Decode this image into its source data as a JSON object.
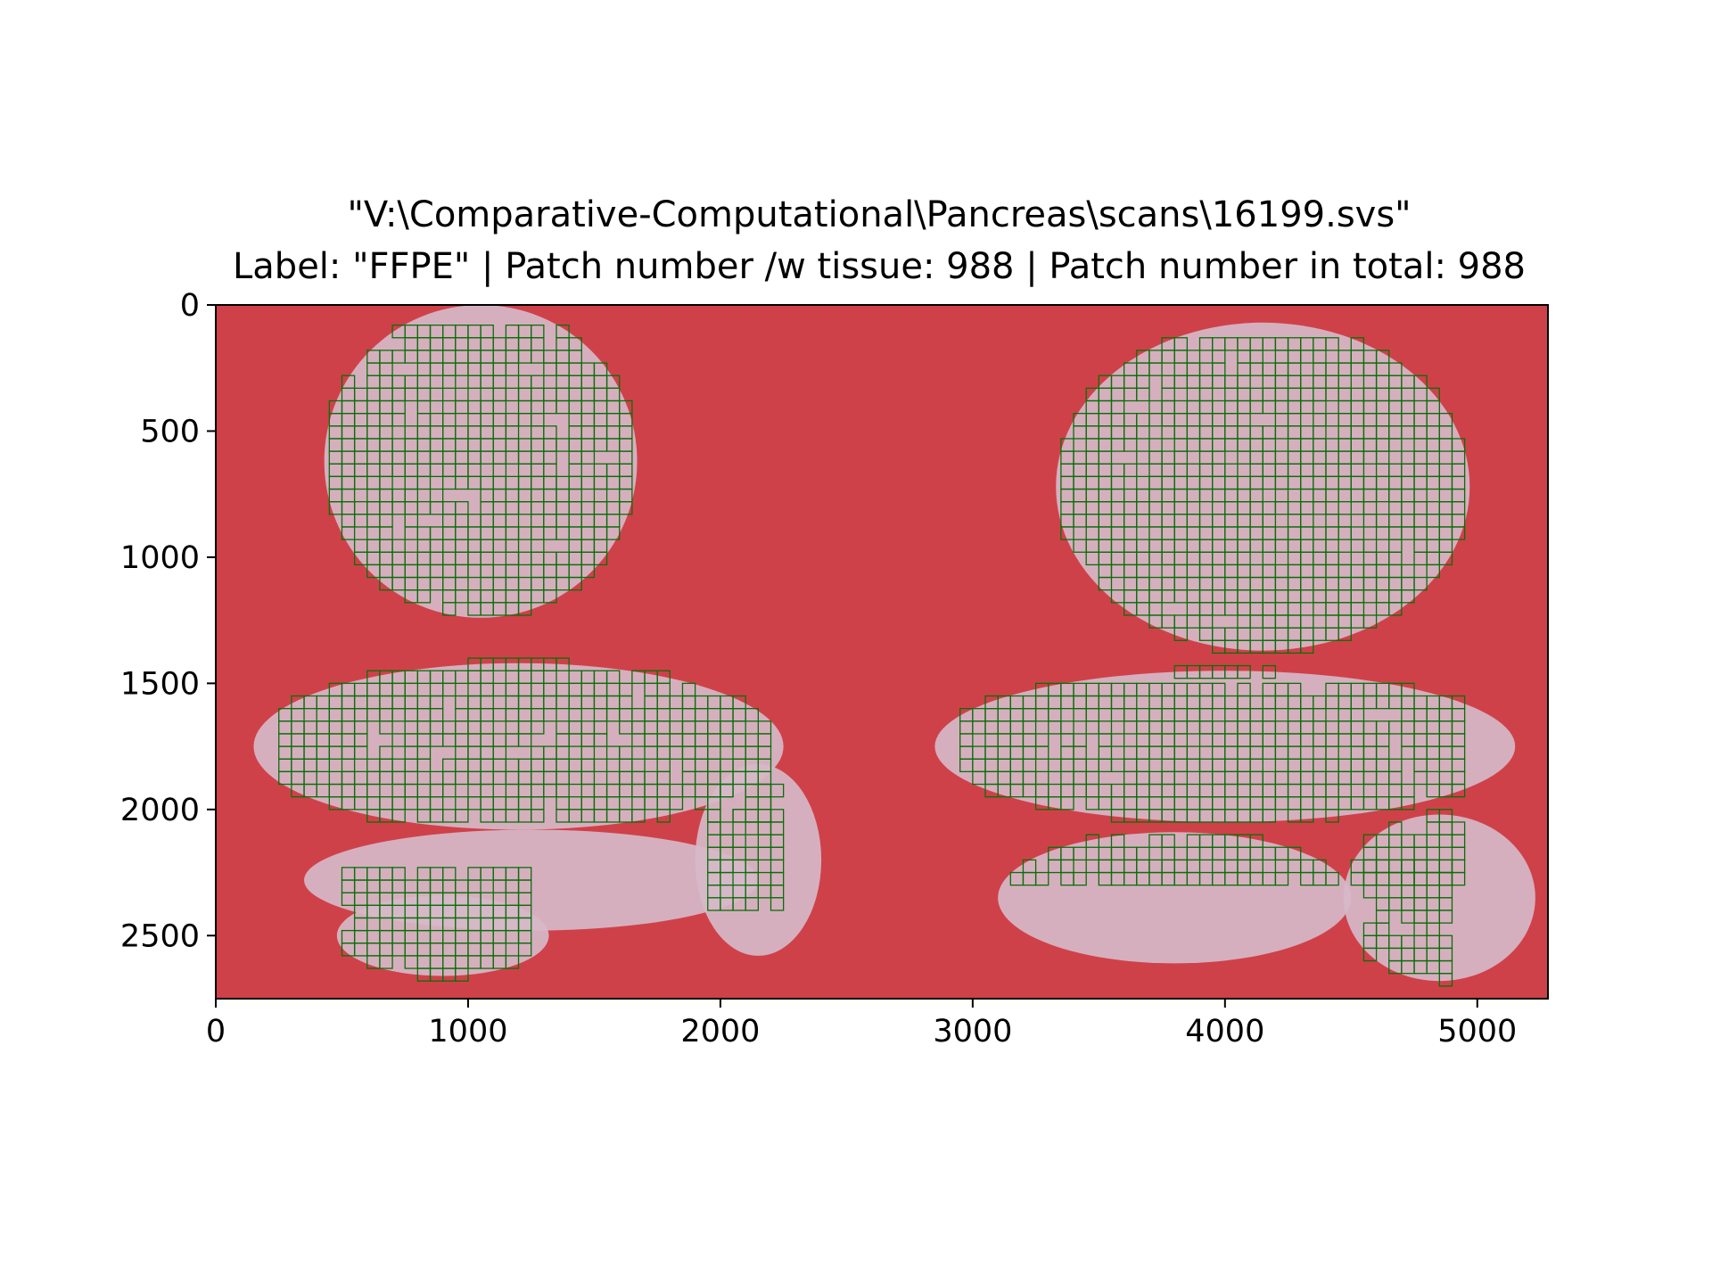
{
  "chart_data": {
    "type": "heatmap",
    "title_line1": "\"V:\\Comparative-Computational\\Pancreas\\scans\\16199.svs\"",
    "title_line2": "Label: \"FFPE\" | Patch number /w tissue: 988 | Patch number in total: 988",
    "xlabel": "",
    "ylabel": "",
    "xlim": [
      0,
      5280
    ],
    "ylim": [
      2750,
      0
    ],
    "xticks": [
      0,
      1000,
      2000,
      3000,
      4000,
      5000
    ],
    "xtick_labels": [
      "0",
      "1000",
      "2000",
      "3000",
      "4000",
      "5000"
    ],
    "yticks": [
      0,
      500,
      1000,
      1500,
      2000,
      2500
    ],
    "ytick_labels": [
      "0",
      "500",
      "1000",
      "1500",
      "2000",
      "2500"
    ],
    "patch_size": 50,
    "colors": {
      "background_mask": "#cf4149",
      "tissue": "#d7b8c9",
      "patch_border": "#0a6e0a",
      "axis": "#000000"
    },
    "tissue_regions": [
      {
        "cx": 1050,
        "cy": 620,
        "rx": 620,
        "ry": 620
      },
      {
        "cx": 1200,
        "cy": 1750,
        "rx": 1050,
        "ry": 330
      },
      {
        "cx": 1250,
        "cy": 2280,
        "rx": 900,
        "ry": 200
      },
      {
        "cx": 900,
        "cy": 2500,
        "rx": 420,
        "ry": 160
      },
      {
        "cx": 2150,
        "cy": 2200,
        "rx": 250,
        "ry": 380
      },
      {
        "cx": 4150,
        "cy": 720,
        "rx": 820,
        "ry": 650
      },
      {
        "cx": 4000,
        "cy": 1750,
        "rx": 1150,
        "ry": 300
      },
      {
        "cx": 3800,
        "cy": 2350,
        "rx": 700,
        "ry": 260
      },
      {
        "cx": 4850,
        "cy": 2350,
        "rx": 380,
        "ry": 330
      }
    ],
    "patch_regions": [
      {
        "x0": 400,
        "x1": 1950,
        "y0": 80,
        "y1": 1330
      },
      {
        "x0": 250,
        "x1": 2200,
        "y0": 1400,
        "y1": 2050
      },
      {
        "x0": 500,
        "x1": 1250,
        "y0": 2230,
        "y1": 2700
      },
      {
        "x0": 1950,
        "x1": 2250,
        "y0": 1900,
        "y1": 2400
      },
      {
        "x0": 3300,
        "x1": 4950,
        "y0": 130,
        "y1": 1450
      },
      {
        "x0": 2950,
        "x1": 4950,
        "y0": 1500,
        "y1": 2300
      },
      {
        "x0": 4550,
        "x1": 4900,
        "y0": 2200,
        "y1": 2700
      }
    ],
    "patch_count_with_tissue": 988,
    "patch_count_total": 988
  }
}
